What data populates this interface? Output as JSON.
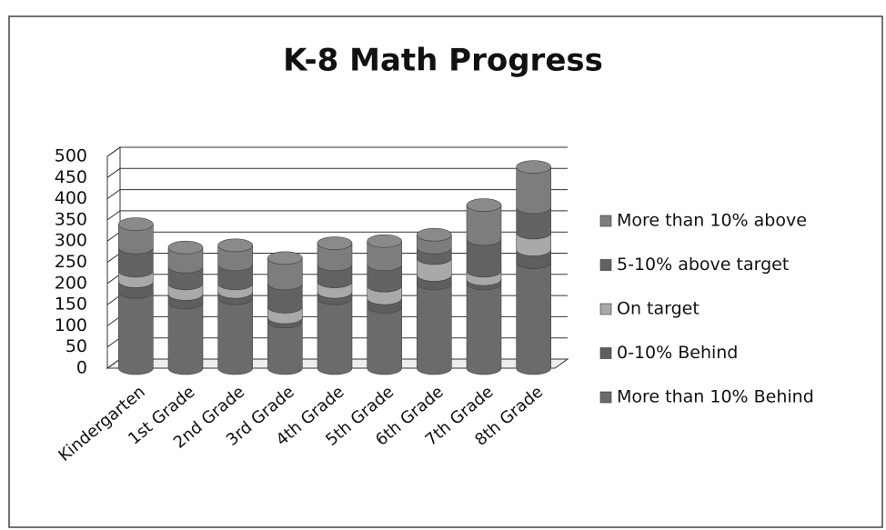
{
  "chart_data": {
    "type": "bar",
    "stacked": true,
    "title": "K-8 Math Progress",
    "categories": [
      "Kindergarten",
      "1st Grade",
      "2nd Grade",
      "3rd Grade",
      "4th Grade",
      "5th Grade",
      "6th Grade",
      "7th Grade",
      "8th Grade"
    ],
    "series": [
      {
        "name": "More than 10% Behind",
        "color": "#6b6b6b",
        "values": [
          180,
          155,
          165,
          110,
          165,
          145,
          200,
          200,
          250
        ]
      },
      {
        "name": "0-10% Behind",
        "color": "#5e5e5e",
        "values": [
          25,
          20,
          15,
          10,
          15,
          20,
          20,
          10,
          30
        ]
      },
      {
        "name": "On target",
        "color": "#a9a9a9",
        "values": [
          25,
          25,
          20,
          25,
          25,
          30,
          40,
          20,
          40
        ]
      },
      {
        "name": "5-10% above target",
        "color": "#626262",
        "values": [
          55,
          40,
          45,
          55,
          40,
          50,
          25,
          75,
          60
        ]
      },
      {
        "name": "More than 10% above",
        "color": "#7d7d7d",
        "values": [
          55,
          45,
          45,
          60,
          50,
          55,
          30,
          80,
          95
        ]
      }
    ],
    "ylim": [
      0,
      500
    ],
    "yticks": [
      0,
      50,
      100,
      150,
      200,
      250,
      300,
      350,
      400,
      450,
      500
    ],
    "grid": true,
    "legend": "right"
  }
}
